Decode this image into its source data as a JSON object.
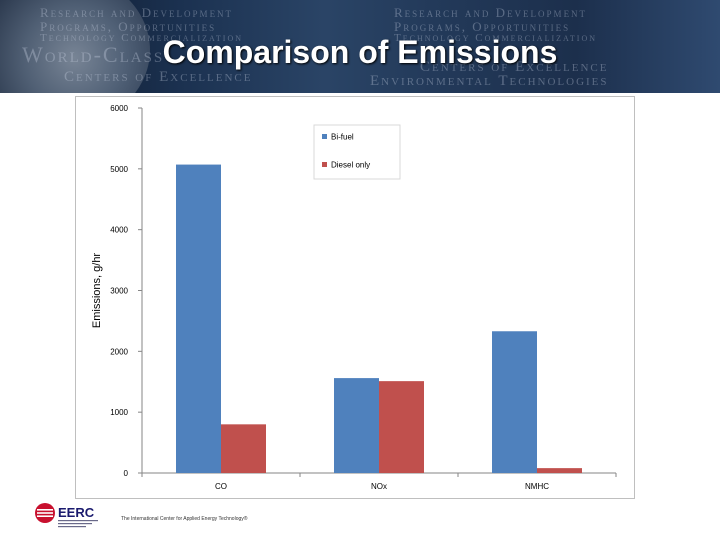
{
  "slide": {
    "title": "Comparison of Emissions",
    "banner_deco": [
      "Research and Development",
      "Programs, Opportunities",
      "Technology Commercialization",
      "World-Class",
      "Centers of Excellence",
      "Environmental Technologies"
    ]
  },
  "footer": {
    "logo_text": "EERC",
    "tagline": "The International Center for Applied Energy Technology®"
  },
  "chart_data": {
    "type": "bar",
    "categories": [
      "CO",
      "NOx",
      "NMHC"
    ],
    "series": [
      {
        "name": "Bi-fuel",
        "values": [
          5070,
          1560,
          2330
        ],
        "color": "#4f81bd"
      },
      {
        "name": "Diesel only",
        "values": [
          800,
          1510,
          80
        ],
        "color": "#c0504d"
      }
    ],
    "ylabel": "Emissions, g/hr",
    "xlabel": "",
    "ylim": [
      0,
      6000
    ],
    "yticks": [
      0,
      1000,
      2000,
      3000,
      4000,
      5000,
      6000
    ],
    "grid": false,
    "legend_position": "top-center"
  }
}
